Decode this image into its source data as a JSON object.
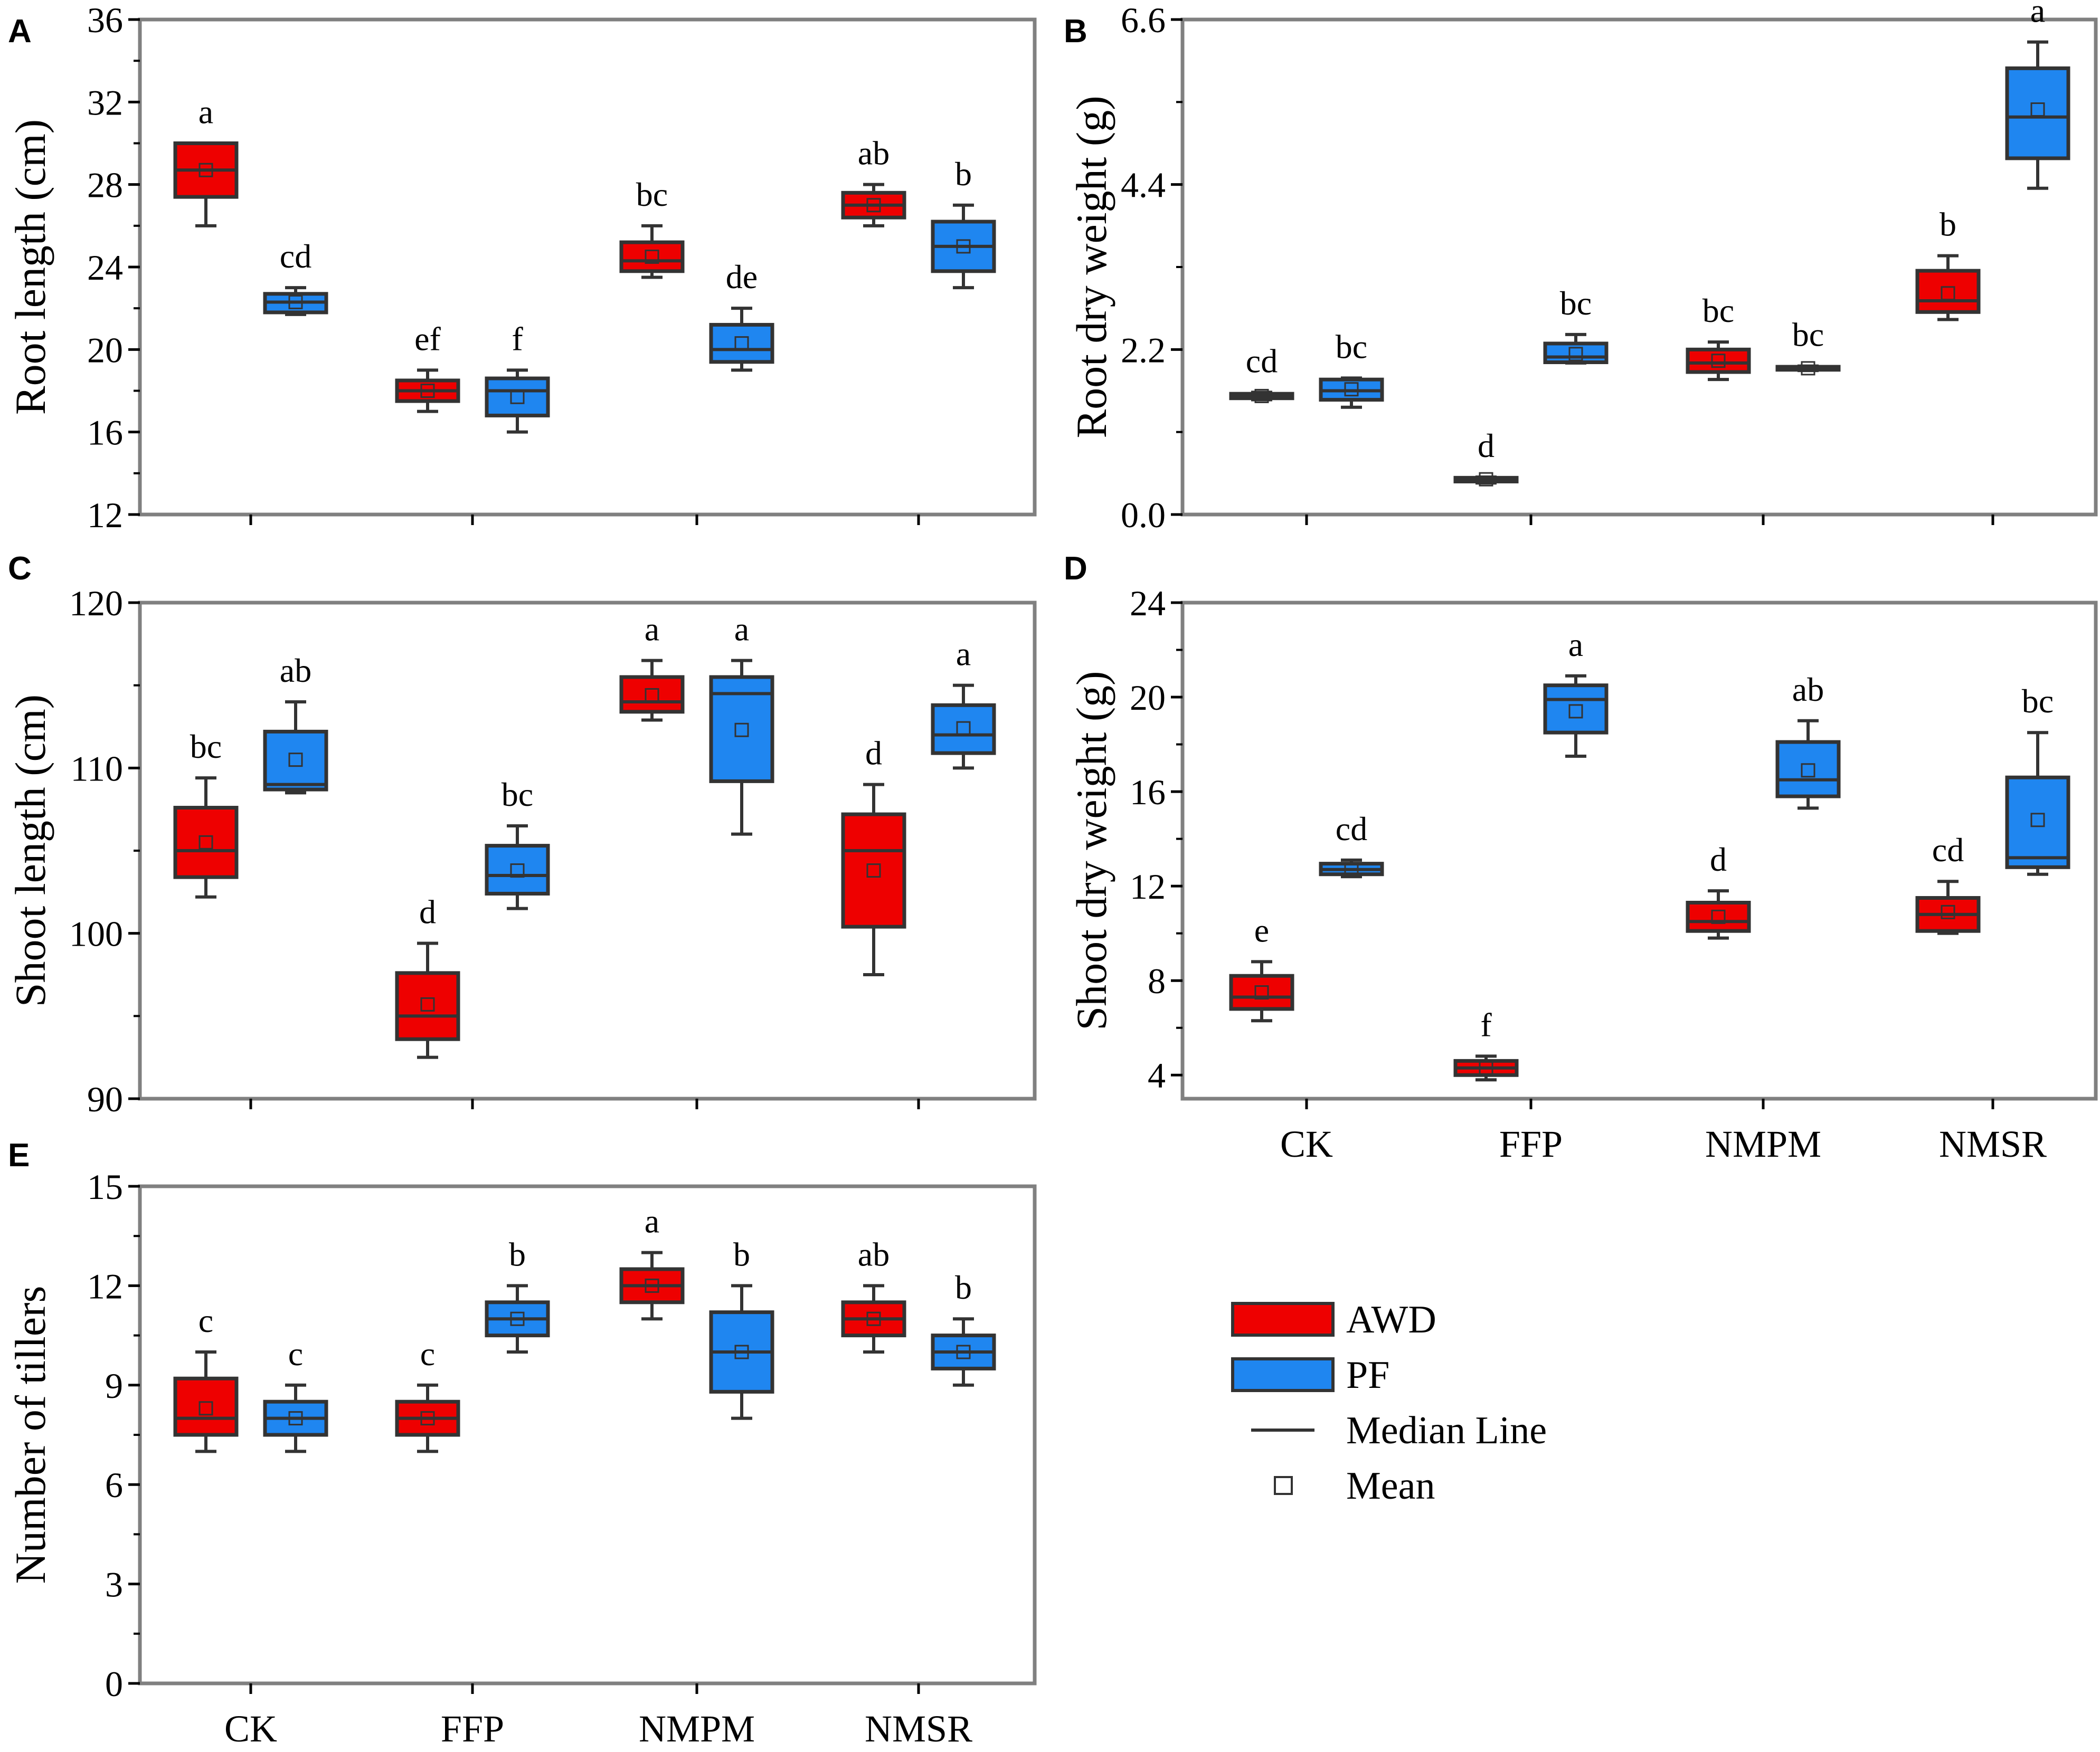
{
  "colors": {
    "AWD": "#ee0000",
    "PF": "#1f86f0",
    "frame": "#808080",
    "outline": "#333333"
  },
  "categories": [
    "CK",
    "FFP",
    "NMPM",
    "NMSR"
  ],
  "legend": [
    {
      "label": "AWD",
      "kind": "box-awd"
    },
    {
      "label": "PF",
      "kind": "box-pf"
    },
    {
      "label": "Median Line",
      "kind": "line"
    },
    {
      "label": "Mean",
      "kind": "mean"
    }
  ],
  "chart_data": [
    {
      "panel": "A",
      "type": "box",
      "ylabel": "Root length (cm)",
      "ylim": [
        12,
        36
      ],
      "yticks": [
        12,
        16,
        20,
        24,
        28,
        32,
        36
      ],
      "series": [
        {
          "name": "AWD",
          "boxes": [
            {
              "category": "CK",
              "min": 26,
              "q1": 27.4,
              "median": 28.7,
              "q3": 30,
              "max": 30,
              "mean": 28.7,
              "letter": "a"
            },
            {
              "category": "FFP",
              "min": 17,
              "q1": 17.5,
              "median": 18,
              "q3": 18.5,
              "max": 19,
              "mean": 18,
              "letter": "ef"
            },
            {
              "category": "NMPM",
              "min": 23.5,
              "q1": 23.8,
              "median": 24.3,
              "q3": 25.2,
              "max": 26,
              "mean": 24.5,
              "letter": "bc"
            },
            {
              "category": "NMSR",
              "min": 26,
              "q1": 26.4,
              "median": 27,
              "q3": 27.6,
              "max": 28,
              "mean": 27,
              "letter": "ab"
            }
          ]
        },
        {
          "name": "PF",
          "boxes": [
            {
              "category": "CK",
              "min": 21.7,
              "q1": 21.8,
              "median": 22.3,
              "q3": 22.7,
              "max": 23,
              "mean": 22.3,
              "letter": "cd"
            },
            {
              "category": "FFP",
              "min": 16,
              "q1": 16.8,
              "median": 18,
              "q3": 18.6,
              "max": 19,
              "mean": 17.7,
              "letter": "f"
            },
            {
              "category": "NMPM",
              "min": 19,
              "q1": 19.4,
              "median": 20,
              "q3": 21.2,
              "max": 22,
              "mean": 20.3,
              "letter": "de"
            },
            {
              "category": "NMSR",
              "min": 23,
              "q1": 23.8,
              "median": 25,
              "q3": 26.2,
              "max": 27,
              "mean": 25,
              "letter": "b"
            }
          ]
        }
      ]
    },
    {
      "panel": "B",
      "type": "box",
      "ylabel": "Root dry weight (g)",
      "ylim": [
        0,
        6.6
      ],
      "yticks": [
        0.0,
        2.2,
        4.4,
        6.6
      ],
      "ytick_labels": [
        "0.0",
        "2.2",
        "4.4",
        "6.6"
      ],
      "series": [
        {
          "name": "AWD",
          "boxes": [
            {
              "category": "CK",
              "min": 1.53,
              "q1": 1.55,
              "median": 1.58,
              "q3": 1.61,
              "max": 1.63,
              "mean": 1.58,
              "letter": "cd"
            },
            {
              "category": "FFP",
              "min": 0.42,
              "q1": 0.44,
              "median": 0.47,
              "q3": 0.49,
              "max": 0.5,
              "mean": 0.47,
              "letter": "d"
            },
            {
              "category": "NMPM",
              "min": 1.8,
              "q1": 1.9,
              "median": 2.02,
              "q3": 2.2,
              "max": 2.3,
              "mean": 2.05,
              "letter": "bc"
            },
            {
              "category": "NMSR",
              "min": 2.6,
              "q1": 2.7,
              "median": 2.85,
              "q3": 3.25,
              "max": 3.45,
              "mean": 2.95,
              "letter": "b"
            }
          ]
        },
        {
          "name": "PF",
          "boxes": [
            {
              "category": "CK",
              "min": 1.43,
              "q1": 1.53,
              "median": 1.65,
              "q3": 1.8,
              "max": 1.82,
              "mean": 1.67,
              "letter": "bc"
            },
            {
              "category": "FFP",
              "min": 2.02,
              "q1": 2.03,
              "median": 2.1,
              "q3": 2.28,
              "max": 2.4,
              "mean": 2.14,
              "letter": "bc"
            },
            {
              "category": "NMPM",
              "min": 1.92,
              "q1": 1.93,
              "median": 1.95,
              "q3": 1.97,
              "max": 1.98,
              "mean": 1.95,
              "letter": "bc"
            },
            {
              "category": "NMSR",
              "min": 4.35,
              "q1": 4.75,
              "median": 5.3,
              "q3": 5.95,
              "max": 6.3,
              "mean": 5.4,
              "letter": "a"
            }
          ]
        }
      ]
    },
    {
      "panel": "C",
      "type": "box",
      "ylabel": "Shoot length (cm)",
      "ylim": [
        90,
        120
      ],
      "yticks": [
        90,
        100,
        110,
        120
      ],
      "series": [
        {
          "name": "AWD",
          "boxes": [
            {
              "category": "CK",
              "min": 102.2,
              "q1": 103.4,
              "median": 105,
              "q3": 107.6,
              "max": 109.4,
              "mean": 105.5,
              "letter": "bc"
            },
            {
              "category": "FFP",
              "min": 92.5,
              "q1": 93.6,
              "median": 95,
              "q3": 97.6,
              "max": 99.4,
              "mean": 95.7,
              "letter": "d"
            },
            {
              "category": "NMPM",
              "min": 112.9,
              "q1": 113.4,
              "median": 114,
              "q3": 115.5,
              "max": 116.5,
              "mean": 114.4,
              "letter": "a"
            },
            {
              "category": "NMSR",
              "min": 97.5,
              "q1": 100.4,
              "median": 105,
              "q3": 107.2,
              "max": 109,
              "mean": 103.8,
              "letter": "d"
            }
          ]
        },
        {
          "name": "PF",
          "boxes": [
            {
              "category": "CK",
              "min": 108.5,
              "q1": 108.7,
              "median": 109,
              "q3": 112.2,
              "max": 114,
              "mean": 110.5,
              "letter": "ab"
            },
            {
              "category": "FFP",
              "min": 101.5,
              "q1": 102.4,
              "median": 103.5,
              "q3": 105.3,
              "max": 106.5,
              "mean": 103.8,
              "letter": "bc"
            },
            {
              "category": "NMPM",
              "min": 106,
              "q1": 109.2,
              "median": 114.5,
              "q3": 115.5,
              "max": 116.5,
              "mean": 112.3,
              "letter": "a"
            },
            {
              "category": "NMSR",
              "min": 110,
              "q1": 110.9,
              "median": 112,
              "q3": 113.8,
              "max": 115,
              "mean": 112.4,
              "letter": "a"
            }
          ]
        }
      ]
    },
    {
      "panel": "D",
      "type": "box",
      "ylabel": "Shoot dry weight (g)",
      "ylim": [
        3,
        24
      ],
      "yticks": [
        4,
        8,
        12,
        16,
        20,
        24
      ],
      "xtick_labels_shown": true,
      "series": [
        {
          "name": "AWD",
          "boxes": [
            {
              "category": "CK",
              "min": 6.3,
              "q1": 6.8,
              "median": 7.3,
              "q3": 8.2,
              "max": 8.8,
              "mean": 7.5,
              "letter": "e"
            },
            {
              "category": "FFP",
              "min": 3.8,
              "q1": 4.0,
              "median": 4.3,
              "q3": 4.6,
              "max": 4.8,
              "mean": 4.3,
              "letter": "f"
            },
            {
              "category": "NMPM",
              "min": 9.8,
              "q1": 10.1,
              "median": 10.5,
              "q3": 11.3,
              "max": 11.8,
              "mean": 10.7,
              "letter": "d"
            },
            {
              "category": "NMSR",
              "min": 10.0,
              "q1": 10.1,
              "median": 10.8,
              "q3": 11.5,
              "max": 12.2,
              "mean": 10.9,
              "letter": "cd"
            }
          ]
        },
        {
          "name": "PF",
          "boxes": [
            {
              "category": "CK",
              "min": 12.4,
              "q1": 12.5,
              "median": 12.7,
              "q3": 12.95,
              "max": 13.1,
              "mean": 12.7,
              "letter": "cd"
            },
            {
              "category": "FFP",
              "min": 17.5,
              "q1": 18.5,
              "median": 19.9,
              "q3": 20.5,
              "max": 20.9,
              "mean": 19.4,
              "letter": "a"
            },
            {
              "category": "NMPM",
              "min": 15.3,
              "q1": 15.8,
              "median": 16.5,
              "q3": 18.1,
              "max": 19.0,
              "mean": 16.9,
              "letter": "ab"
            },
            {
              "category": "NMSR",
              "min": 12.5,
              "q1": 12.8,
              "median": 13.2,
              "q3": 16.6,
              "max": 18.5,
              "mean": 14.8,
              "letter": "bc"
            }
          ]
        }
      ]
    },
    {
      "panel": "E",
      "type": "box",
      "ylabel": "Number of tillers",
      "ylim": [
        0,
        15
      ],
      "yticks": [
        0,
        3,
        6,
        9,
        12,
        15
      ],
      "xtick_labels_shown": true,
      "series": [
        {
          "name": "AWD",
          "boxes": [
            {
              "category": "CK",
              "min": 7,
              "q1": 7.5,
              "median": 8,
              "q3": 9.2,
              "max": 10,
              "mean": 8.3,
              "letter": "c"
            },
            {
              "category": "FFP",
              "min": 7,
              "q1": 7.5,
              "median": 8,
              "q3": 8.5,
              "max": 9,
              "mean": 8,
              "letter": "c"
            },
            {
              "category": "NMPM",
              "min": 11,
              "q1": 11.5,
              "median": 12,
              "q3": 12.5,
              "max": 13,
              "mean": 12,
              "letter": "a"
            },
            {
              "category": "NMSR",
              "min": 10,
              "q1": 10.5,
              "median": 11,
              "q3": 11.5,
              "max": 12,
              "mean": 11,
              "letter": "ab"
            }
          ]
        },
        {
          "name": "PF",
          "boxes": [
            {
              "category": "CK",
              "min": 7,
              "q1": 7.5,
              "median": 8,
              "q3": 8.5,
              "max": 9,
              "mean": 8,
              "letter": "c"
            },
            {
              "category": "FFP",
              "min": 10,
              "q1": 10.5,
              "median": 11,
              "q3": 11.5,
              "max": 12,
              "mean": 11,
              "letter": "b"
            },
            {
              "category": "NMPM",
              "min": 8,
              "q1": 8.8,
              "median": 10,
              "q3": 11.2,
              "max": 12,
              "mean": 10,
              "letter": "b"
            },
            {
              "category": "NMSR",
              "min": 9,
              "q1": 9.5,
              "median": 10,
              "q3": 10.5,
              "max": 11,
              "mean": 10,
              "letter": "b"
            }
          ]
        }
      ]
    }
  ]
}
